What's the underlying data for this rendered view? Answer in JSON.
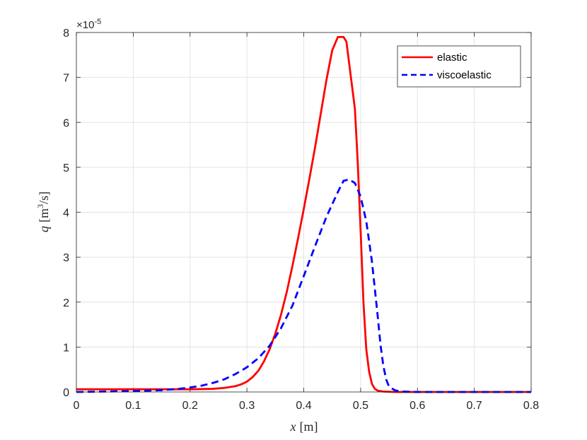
{
  "chart_data": {
    "type": "line",
    "title": "",
    "xlabel_var": "x",
    "xlabel_unit": "[m]",
    "ylabel_var": "q",
    "ylabel_unit_pre": "[m",
    "ylabel_unit_sup": "3",
    "ylabel_unit_post": "/s]",
    "xlim": [
      0,
      0.8
    ],
    "ylim": [
      0,
      8
    ],
    "xticks": [
      "0",
      "0.1",
      "0.2",
      "0.3",
      "0.4",
      "0.5",
      "0.6",
      "0.7",
      "0.8"
    ],
    "yticks": [
      "0",
      "1",
      "2",
      "3",
      "4",
      "5",
      "6",
      "7",
      "8"
    ],
    "y_multiplier_base": "×10",
    "y_multiplier_exp": "-5",
    "grid": true,
    "legend_position": "top-right",
    "series": [
      {
        "name": "elastic",
        "style": "solid",
        "color": "#ff0000",
        "x": [
          0.0,
          0.1,
          0.2,
          0.24,
          0.26,
          0.28,
          0.29,
          0.3,
          0.31,
          0.32,
          0.33,
          0.34,
          0.35,
          0.36,
          0.37,
          0.38,
          0.39,
          0.4,
          0.41,
          0.42,
          0.43,
          0.44,
          0.45,
          0.46,
          0.47,
          0.475,
          0.48,
          0.49,
          0.495,
          0.5,
          0.505,
          0.51,
          0.515,
          0.52,
          0.525,
          0.53,
          0.54,
          0.56,
          0.6,
          0.7,
          0.8
        ],
        "values": [
          0.06,
          0.06,
          0.06,
          0.07,
          0.09,
          0.13,
          0.17,
          0.23,
          0.33,
          0.47,
          0.68,
          0.95,
          1.3,
          1.72,
          2.22,
          2.8,
          3.42,
          4.07,
          4.75,
          5.45,
          6.2,
          6.95,
          7.6,
          7.9,
          7.9,
          7.8,
          7.3,
          6.3,
          5.1,
          3.6,
          2.0,
          0.95,
          0.45,
          0.18,
          0.07,
          0.03,
          0.01,
          0.0,
          0.0,
          0.0,
          0.0
        ]
      },
      {
        "name": "viscoelastic",
        "style": "dashed",
        "color": "#0000ff",
        "x": [
          0.0,
          0.1,
          0.15,
          0.18,
          0.2,
          0.22,
          0.24,
          0.26,
          0.28,
          0.3,
          0.32,
          0.34,
          0.36,
          0.38,
          0.4,
          0.42,
          0.44,
          0.46,
          0.47,
          0.48,
          0.49,
          0.5,
          0.51,
          0.52,
          0.53,
          0.535,
          0.54,
          0.545,
          0.55,
          0.56,
          0.57,
          0.6,
          0.7,
          0.8
        ],
        "values": [
          0.0,
          0.02,
          0.04,
          0.07,
          0.1,
          0.14,
          0.2,
          0.28,
          0.4,
          0.55,
          0.75,
          1.03,
          1.42,
          1.92,
          2.58,
          3.25,
          3.9,
          4.45,
          4.7,
          4.73,
          4.65,
          4.35,
          3.8,
          2.9,
          1.7,
          1.05,
          0.58,
          0.28,
          0.12,
          0.04,
          0.01,
          0.0,
          0.0,
          0.0
        ]
      }
    ]
  }
}
